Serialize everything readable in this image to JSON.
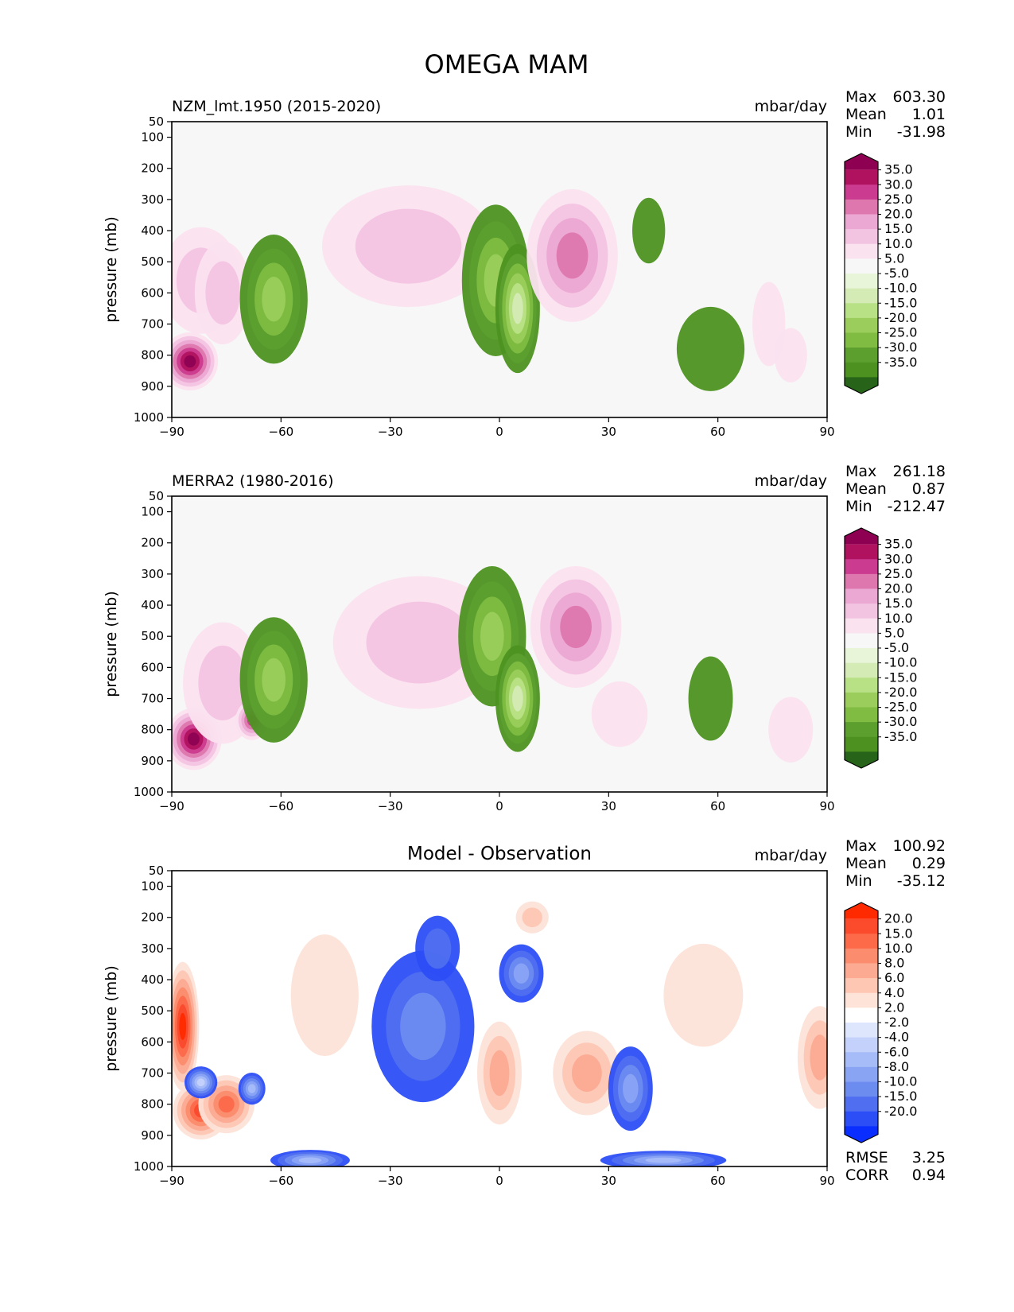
{
  "figure": {
    "title": "OMEGA MAM"
  },
  "chart_data": [
    {
      "type": "heatmap",
      "title": "NZM_lmt.1950 (2015-2020)",
      "units": "mbar/day",
      "ylabel": "pressure (mb)",
      "xlabel": "",
      "xlim": [
        -90,
        90
      ],
      "ylim": [
        1000,
        50
      ],
      "xticks": [
        "−90",
        "−60",
        "−30",
        "0",
        "30",
        "60",
        "90"
      ],
      "yticks": [
        "50",
        "100",
        "200",
        "300",
        "400",
        "500",
        "600",
        "700",
        "800",
        "900",
        "1000"
      ],
      "stats": {
        "max_label": "Max",
        "max": "603.30",
        "mean_label": "Mean",
        "mean": "1.01",
        "min_label": "Min",
        "min": "-31.98"
      },
      "colorbar": {
        "labels": [
          "35.0",
          "30.0",
          "25.0",
          "20.0",
          "15.0",
          "10.0",
          "5.0",
          "-5.0",
          "-10.0",
          "-15.0",
          "-20.0",
          "-25.0",
          "-30.0",
          "-35.0"
        ],
        "colors": [
          "#8e0152",
          "#b0125f",
          "#cb3b8f",
          "#de77ae",
          "#eba8d2",
          "#f3c4e2",
          "#fbe2ef",
          "#f7f7f7",
          "#e9f5d9",
          "#d4ebb5",
          "#b8e186",
          "#9acd5c",
          "#7fbc41",
          "#5c9f2f",
          "#4d9221",
          "#276419"
        ]
      },
      "features": [
        {
          "lat": -85,
          "p": 820,
          "dlat": 4,
          "dp": 130,
          "v": 35
        },
        {
          "lat": -82,
          "p": 560,
          "dlat": 6,
          "dp": 260,
          "v": 10
        },
        {
          "lat": -76,
          "p": 600,
          "dlat": 4,
          "dp": 250,
          "v": 10
        },
        {
          "lat": -62,
          "p": 620,
          "dlat": 5,
          "dp": 320,
          "v": -20
        },
        {
          "lat": -25,
          "p": 450,
          "dlat": 14,
          "dp": 300,
          "v": 10
        },
        {
          "lat": -1,
          "p": 560,
          "dlat": 5,
          "dp": 380,
          "v": -22
        },
        {
          "lat": 5,
          "p": 650,
          "dlat": 3,
          "dp": 320,
          "v": -32
        },
        {
          "lat": 20,
          "p": 480,
          "dlat": 7,
          "dp": 330,
          "v": 22
        },
        {
          "lat": 41,
          "p": 400,
          "dlat": 2,
          "dp": 150,
          "v": -6
        },
        {
          "lat": 58,
          "p": 780,
          "dlat": 5,
          "dp": 200,
          "v": -6
        },
        {
          "lat": 74,
          "p": 700,
          "dlat": 2,
          "dp": 200,
          "v": 8
        },
        {
          "lat": 80,
          "p": 800,
          "dlat": 2,
          "dp": 120,
          "v": 8
        }
      ]
    },
    {
      "type": "heatmap",
      "title": "MERRA2 (1980-2016)",
      "units": "mbar/day",
      "ylabel": "pressure (mb)",
      "xlabel": "",
      "xlim": [
        -90,
        90
      ],
      "ylim": [
        1000,
        50
      ],
      "xticks": [
        "−90",
        "−60",
        "−30",
        "0",
        "30",
        "60",
        "90"
      ],
      "yticks": [
        "50",
        "100",
        "200",
        "300",
        "400",
        "500",
        "600",
        "700",
        "800",
        "900",
        "1000"
      ],
      "stats": {
        "max_label": "Max",
        "max": "261.18",
        "mean_label": "Mean",
        "mean": "0.87",
        "min_label": "Min",
        "min": "-212.47"
      },
      "colorbar": {
        "labels": [
          "35.0",
          "30.0",
          "25.0",
          "20.0",
          "15.0",
          "10.0",
          "5.0",
          "-5.0",
          "-10.0",
          "-15.0",
          "-20.0",
          "-25.0",
          "-30.0",
          "-35.0"
        ],
        "colors": [
          "#8e0152",
          "#b0125f",
          "#cb3b8f",
          "#de77ae",
          "#eba8d2",
          "#f3c4e2",
          "#fbe2ef",
          "#f7f7f7",
          "#e9f5d9",
          "#d4ebb5",
          "#b8e186",
          "#9acd5c",
          "#7fbc41",
          "#5c9f2f",
          "#4d9221",
          "#276419"
        ]
      },
      "features": [
        {
          "lat": -84,
          "p": 830,
          "dlat": 4,
          "dp": 140,
          "v": 35
        },
        {
          "lat": -76,
          "p": 650,
          "dlat": 6,
          "dp": 300,
          "v": 12
        },
        {
          "lat": -68,
          "p": 770,
          "dlat": 2,
          "dp": 80,
          "v": 25
        },
        {
          "lat": -62,
          "p": 640,
          "dlat": 5,
          "dp": 310,
          "v": -20
        },
        {
          "lat": -22,
          "p": 520,
          "dlat": 14,
          "dp": 330,
          "v": 12
        },
        {
          "lat": -2,
          "p": 500,
          "dlat": 5,
          "dp": 350,
          "v": -22
        },
        {
          "lat": 5,
          "p": 700,
          "dlat": 3,
          "dp": 260,
          "v": -32
        },
        {
          "lat": 21,
          "p": 470,
          "dlat": 7,
          "dp": 300,
          "v": 20
        },
        {
          "lat": 33,
          "p": 750,
          "dlat": 4,
          "dp": 150,
          "v": 6
        },
        {
          "lat": 58,
          "p": 700,
          "dlat": 3,
          "dp": 200,
          "v": -6
        },
        {
          "lat": 80,
          "p": 800,
          "dlat": 3,
          "dp": 150,
          "v": 8
        }
      ]
    },
    {
      "type": "heatmap",
      "title": "Model - Observation",
      "units": "mbar/day",
      "ylabel": "pressure (mb)",
      "xlabel": "",
      "xlim": [
        -90,
        90
      ],
      "ylim": [
        1000,
        50
      ],
      "xticks": [
        "−90",
        "−60",
        "−30",
        "0",
        "30",
        "60",
        "90"
      ],
      "yticks": [
        "50",
        "100",
        "200",
        "300",
        "400",
        "500",
        "600",
        "700",
        "800",
        "900",
        "1000"
      ],
      "stats": {
        "max_label": "Max",
        "max": "100.92",
        "mean_label": "Mean",
        "mean": "0.29",
        "min_label": "Min",
        "min": "-35.12"
      },
      "metrics": {
        "rmse_label": "RMSE",
        "rmse": "3.25",
        "corr_label": "CORR",
        "corr": "0.94"
      },
      "colorbar": {
        "labels": [
          "20.0",
          "15.0",
          "10.0",
          "8.0",
          "6.0",
          "4.0",
          "2.0",
          "-2.0",
          "-4.0",
          "-6.0",
          "-8.0",
          "-10.0",
          "-15.0",
          "-20.0"
        ],
        "colors": [
          "#ff2a00",
          "#fb4a2c",
          "#fc6a4a",
          "#fc8c6e",
          "#fcab92",
          "#fdc7b4",
          "#fde3d8",
          "#ffffff",
          "#dde6fd",
          "#c3d1fb",
          "#a6bcf8",
          "#8aa4f4",
          "#6d8cf0",
          "#4f6ff0",
          "#2c4ef6",
          "#0a2eff"
        ]
      },
      "features": [
        {
          "lat": -87,
          "p": 550,
          "dlat": 2,
          "dp": 320,
          "v": 20
        },
        {
          "lat": -82,
          "p": 820,
          "dlat": 4,
          "dp": 130,
          "v": 15
        },
        {
          "lat": -75,
          "p": 800,
          "dlat": 4,
          "dp": 130,
          "v": 12
        },
        {
          "lat": -82,
          "p": 730,
          "dlat": 2,
          "dp": 60,
          "v": -15
        },
        {
          "lat": -68,
          "p": 750,
          "dlat": 1.5,
          "dp": 60,
          "v": -12
        },
        {
          "lat": -52,
          "p": 980,
          "dlat": 6,
          "dp": 30,
          "v": -12
        },
        {
          "lat": -48,
          "p": 450,
          "dlat": 5,
          "dp": 300,
          "v": 3
        },
        {
          "lat": -21,
          "p": 550,
          "dlat": 8,
          "dp": 380,
          "v": -6
        },
        {
          "lat": -17,
          "p": 300,
          "dlat": 3,
          "dp": 150,
          "v": -5
        },
        {
          "lat": 0,
          "p": 700,
          "dlat": 3,
          "dp": 250,
          "v": 6
        },
        {
          "lat": 6,
          "p": 380,
          "dlat": 3,
          "dp": 130,
          "v": -8
        },
        {
          "lat": 9,
          "p": 200,
          "dlat": 2,
          "dp": 60,
          "v": 4
        },
        {
          "lat": 24,
          "p": 700,
          "dlat": 5,
          "dp": 200,
          "v": 6
        },
        {
          "lat": 36,
          "p": 750,
          "dlat": 3,
          "dp": 200,
          "v": -8
        },
        {
          "lat": 45,
          "p": 980,
          "dlat": 10,
          "dp": 25,
          "v": -12
        },
        {
          "lat": 56,
          "p": 450,
          "dlat": 6,
          "dp": 250,
          "v": 3
        },
        {
          "lat": 88,
          "p": 650,
          "dlat": 3,
          "dp": 250,
          "v": 6
        }
      ]
    }
  ]
}
